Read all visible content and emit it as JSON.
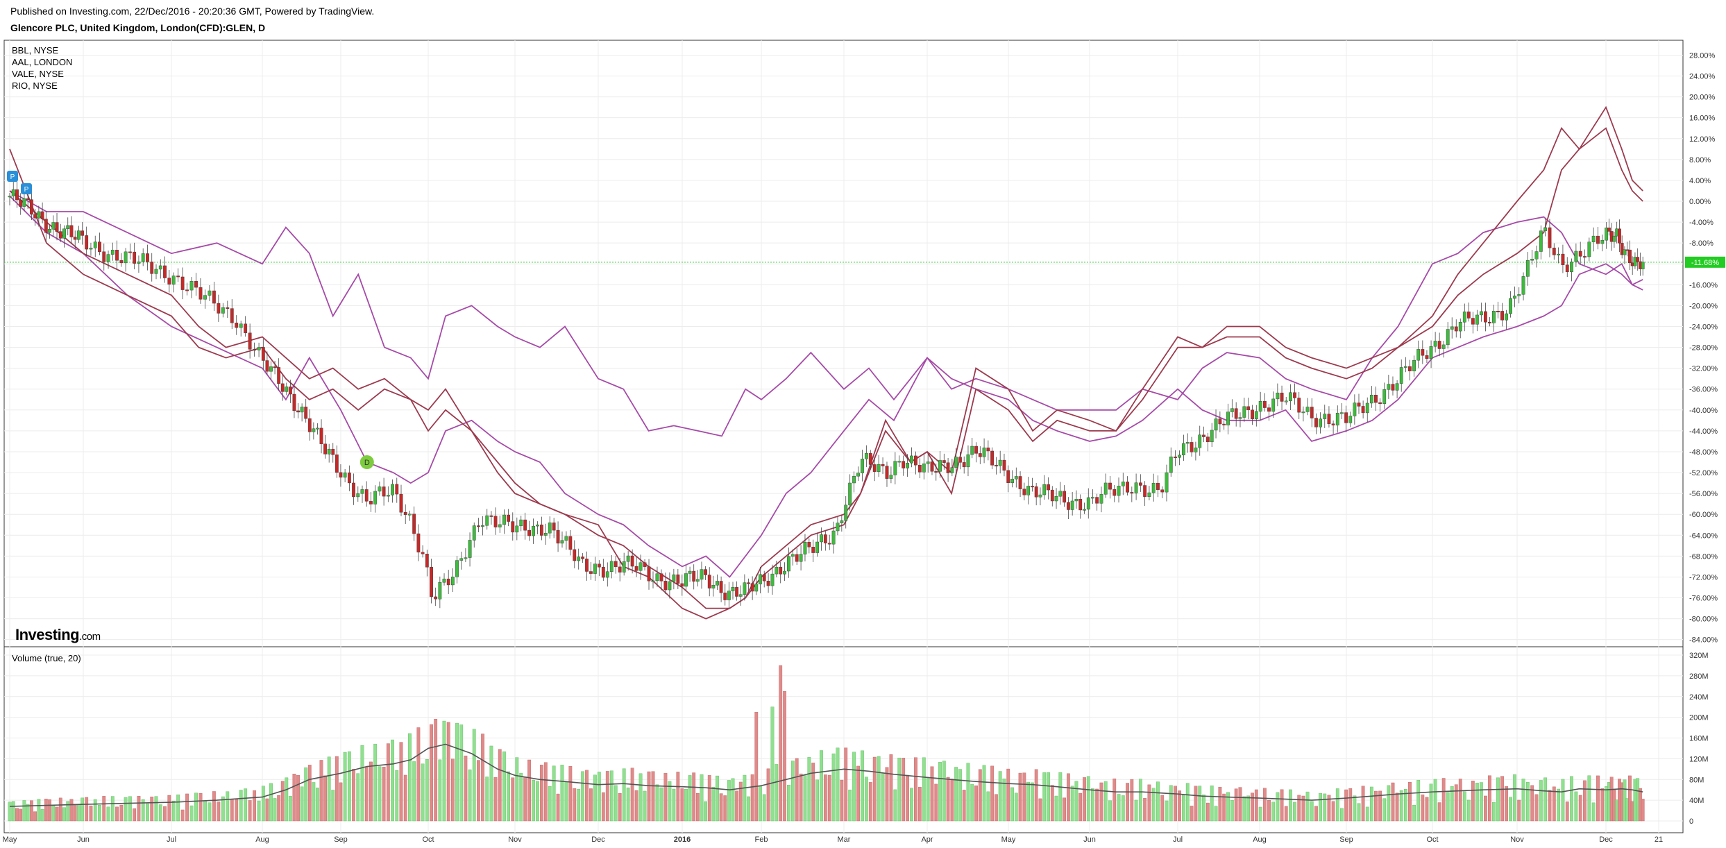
{
  "header": {
    "published": "Published on Investing.com, 22/Dec/2016 - 20:20:36 GMT, Powered by TradingView.",
    "title": "Glencore PLC, United Kingdom, London(CFD):GLEN, D"
  },
  "legend": [
    "BBL, NYSE",
    "AAL, LONDON",
    "VALE, NYSE",
    "RIO, NYSE"
  ],
  "logo": {
    "main": "Investing",
    "suffix": ".com"
  },
  "volume_title": "Volume (true, 20)",
  "price_marker": "-11.68%",
  "marker_letters": {
    "dividend": "D",
    "split": "P"
  },
  "colors": {
    "up": "#3dbb3d",
    "down": "#c62828",
    "vol_up": "#8fe08f",
    "vol_down": "#e08a8a",
    "compare_purple": "#a64aa8",
    "compare_maroon": "#9c3a4e",
    "price_line": "#2ecc2e",
    "marker_green": "#7dcc3e",
    "marker_blue": "#2a8fd8"
  },
  "chart_data": {
    "type": "line",
    "xlabel": "",
    "ylabel": "",
    "x_ticks": [
      "May",
      "Jun",
      "Jul",
      "Aug",
      "Sep",
      "Oct",
      "Nov",
      "Dec",
      "2016",
      "Feb",
      "Mar",
      "Apr",
      "May",
      "Jun",
      "Jul",
      "Aug",
      "Sep",
      "Oct",
      "Nov",
      "Dec",
      "21"
    ],
    "y_ticks": [
      "28.00%",
      "24.00%",
      "20.00%",
      "16.00%",
      "12.00%",
      "8.00%",
      "4.00%",
      "0.00%",
      "-4.00%",
      "-8.00%",
      "-12.00%",
      "-16.00%",
      "-20.00%",
      "-24.00%",
      "-28.00%",
      "-32.00%",
      "-36.00%",
      "-40.00%",
      "-44.00%",
      "-48.00%",
      "-52.00%",
      "-56.00%",
      "-60.00%",
      "-64.00%",
      "-68.00%",
      "-72.00%",
      "-76.00%",
      "-80.00%",
      "-84.00%"
    ],
    "ylim": [
      -86,
      30
    ],
    "volume_ticks": [
      "320M",
      "280M",
      "240M",
      "200M",
      "160M",
      "120M",
      "80M",
      "40M",
      "0"
    ],
    "volume_ylim": [
      0,
      330
    ],
    "grid": true,
    "months_x": [
      0,
      1,
      2,
      3,
      4,
      5,
      6,
      7,
      8,
      9,
      10,
      11,
      12,
      13,
      14,
      15,
      16,
      17,
      18,
      19,
      19.7
    ],
    "main_series": {
      "name": "Glencore PLC, United Kingdom, London(CFD):GLEN, D",
      "x": [
        0,
        0.5,
        1,
        1.5,
        2,
        2.3,
        2.7,
        3,
        3.3,
        3.5,
        3.8,
        4,
        4.3,
        4.6,
        4.8,
        4.95,
        5.05,
        5.3,
        5.6,
        6,
        6.4,
        6.8,
        7,
        7.4,
        7.7,
        8,
        8.3,
        8.6,
        8.8,
        9,
        9.3,
        9.6,
        9.9,
        10,
        10.2,
        10.5,
        10.7,
        11,
        11.3,
        11.6,
        12,
        12.3,
        12.7,
        13,
        13.2,
        13.5,
        13.8,
        14,
        14.3,
        14.6,
        15,
        15.3,
        15.6,
        16,
        16.3,
        16.6,
        17,
        17.3,
        17.6,
        17.9,
        18.1,
        18.3,
        18.5,
        18.7,
        19,
        19.2,
        19.4,
        19.6,
        19.7
      ],
      "y": [
        1,
        -4,
        -8,
        -11,
        -14,
        -18,
        -22,
        -31,
        -36,
        -40,
        -48,
        -52,
        -57,
        -56,
        -61,
        -68,
        -76,
        -72,
        -60,
        -63,
        -62,
        -70,
        -70,
        -70,
        -72,
        -73,
        -72,
        -75,
        -75,
        -73,
        -69,
        -67,
        -63,
        -58,
        -50,
        -52,
        -49,
        -52,
        -50,
        -48,
        -52,
        -56,
        -57,
        -58,
        -56,
        -54,
        -56,
        -48,
        -45,
        -42,
        -39,
        -38,
        -41,
        -42,
        -38,
        -34,
        -28,
        -23,
        -23,
        -20,
        -14,
        -6,
        -12,
        -10,
        -7,
        -6,
        -10,
        -13,
        -12
      ]
    },
    "series": [
      {
        "name": "BBL, NYSE",
        "color": "compare_purple",
        "x": [
          0,
          0.5,
          1,
          1.5,
          2,
          2.5,
          3,
          3.3,
          3.6,
          3.9,
          4.2,
          4.5,
          4.8,
          5,
          5.2,
          5.5,
          5.8,
          6,
          6.3,
          6.6,
          7,
          7.3,
          7.6,
          7.9,
          8.2,
          8.5,
          8.8,
          9,
          9.3,
          9.6,
          10,
          10.3,
          10.6,
          11,
          11.3,
          11.6,
          12,
          12.3,
          12.6,
          13,
          13.3,
          13.6,
          14,
          14.3,
          14.6,
          15,
          15.3,
          15.6,
          16,
          16.3,
          16.6,
          17,
          17.3,
          17.6,
          18,
          18.3,
          18.5,
          18.7,
          19,
          19.3,
          19.5,
          19.7
        ],
        "y": [
          2,
          -2,
          -2,
          -6,
          -10,
          -8,
          -12,
          -5,
          -10,
          -22,
          -14,
          -28,
          -30,
          -34,
          -22,
          -20,
          -24,
          -26,
          -28,
          -24,
          -34,
          -36,
          -44,
          -43,
          -44,
          -45,
          -36,
          -38,
          -34,
          -29,
          -36,
          -32,
          -38,
          -30,
          -36,
          -34,
          -36,
          -38,
          -40,
          -40,
          -40,
          -36,
          -38,
          -32,
          -29,
          -30,
          -34,
          -36,
          -38,
          -30,
          -24,
          -12,
          -10,
          -6,
          -4,
          -3,
          -6,
          -12,
          -14,
          -12,
          -16,
          -17
        ]
      },
      {
        "name": "AAL, LONDON",
        "color": "compare_purple",
        "x": [
          0,
          0.5,
          1,
          1.5,
          2,
          2.5,
          3,
          3.3,
          3.6,
          4,
          4.3,
          4.6,
          4.8,
          5,
          5.2,
          5.5,
          5.8,
          6,
          6.3,
          6.6,
          7,
          7.3,
          7.6,
          8,
          8.3,
          8.6,
          9,
          9.3,
          9.6,
          10,
          10.3,
          10.6,
          11,
          11.3,
          11.6,
          12,
          12.3,
          12.6,
          13,
          13.3,
          13.6,
          14,
          14.3,
          14.6,
          15,
          15.3,
          15.6,
          16,
          16.3,
          16.6,
          17,
          17.3,
          17.6,
          18,
          18.3,
          18.5,
          18.7,
          19,
          19.3,
          19.5,
          19.7
        ],
        "y": [
          1,
          -6,
          -10,
          -18,
          -24,
          -28,
          -32,
          -38,
          -30,
          -40,
          -50,
          -52,
          -54,
          -52,
          -44,
          -42,
          -46,
          -48,
          -50,
          -56,
          -60,
          -62,
          -66,
          -70,
          -68,
          -72,
          -64,
          -56,
          -52,
          -44,
          -38,
          -42,
          -30,
          -34,
          -36,
          -38,
          -42,
          -44,
          -46,
          -45,
          -42,
          -36,
          -40,
          -42,
          -42,
          -40,
          -46,
          -44,
          -42,
          -38,
          -30,
          -28,
          -26,
          -24,
          -22,
          -20,
          -14,
          -12,
          -14,
          -16,
          -15
        ]
      },
      {
        "name": "VALE, NYSE",
        "color": "compare_maroon",
        "x": [
          0,
          0.5,
          1,
          1.5,
          2,
          2.3,
          2.6,
          3,
          3.3,
          3.6,
          3.9,
          4.2,
          4.5,
          4.8,
          5,
          5.2,
          5.5,
          5.8,
          6,
          6.3,
          6.6,
          7,
          7.3,
          7.6,
          8,
          8.3,
          8.6,
          8.8,
          9,
          9.3,
          9.6,
          10,
          10.2,
          10.5,
          10.8,
          11,
          11.3,
          11.6,
          12,
          12.3,
          12.6,
          13,
          13.3,
          13.6,
          14,
          14.3,
          14.6,
          15,
          15.3,
          15.6,
          16,
          16.3,
          16.6,
          17,
          17.3,
          17.6,
          18,
          18.3,
          18.5,
          18.7,
          19,
          19.3,
          19.5,
          19.7
        ],
        "y": [
          10,
          -8,
          -14,
          -18,
          -22,
          -28,
          -30,
          -28,
          -34,
          -38,
          -36,
          -40,
          -36,
          -38,
          -40,
          -36,
          -44,
          -52,
          -56,
          -58,
          -60,
          -62,
          -70,
          -72,
          -78,
          -80,
          -78,
          -76,
          -70,
          -66,
          -62,
          -60,
          -56,
          -42,
          -50,
          -48,
          -56,
          -36,
          -40,
          -46,
          -42,
          -44,
          -44,
          -36,
          -26,
          -28,
          -24,
          -24,
          -28,
          -30,
          -32,
          -30,
          -28,
          -22,
          -14,
          -8,
          0,
          6,
          14,
          10,
          18,
          10,
          4,
          2
        ]
      },
      {
        "name": "RIO, NYSE",
        "color": "compare_maroon",
        "x": [
          0,
          0.5,
          1,
          1.5,
          2,
          2.3,
          2.6,
          3,
          3.3,
          3.6,
          3.9,
          4.2,
          4.5,
          4.8,
          5,
          5.2,
          5.5,
          5.8,
          6,
          6.3,
          6.6,
          7,
          7.3,
          7.6,
          8,
          8.3,
          8.6,
          8.8,
          9,
          9.3,
          9.6,
          10,
          10.2,
          10.5,
          10.8,
          11,
          11.3,
          11.6,
          12,
          12.3,
          12.6,
          13,
          13.3,
          13.6,
          14,
          14.3,
          14.6,
          15,
          15.3,
          15.6,
          16,
          16.3,
          16.6,
          17,
          17.3,
          17.6,
          18,
          18.3,
          18.5,
          18.7,
          19,
          19.3,
          19.5,
          19.7
        ],
        "y": [
          2,
          -4,
          -10,
          -14,
          -18,
          -24,
          -28,
          -26,
          -30,
          -34,
          -32,
          -36,
          -34,
          -38,
          -44,
          -40,
          -44,
          -50,
          -54,
          -58,
          -60,
          -64,
          -66,
          -70,
          -74,
          -78,
          -78,
          -76,
          -72,
          -68,
          -64,
          -62,
          -56,
          -44,
          -50,
          -48,
          -52,
          -32,
          -36,
          -44,
          -40,
          -42,
          -44,
          -38,
          -28,
          -28,
          -26,
          -26,
          -30,
          -32,
          -34,
          -32,
          -28,
          -24,
          -18,
          -14,
          -10,
          -6,
          6,
          10,
          14,
          6,
          2,
          0
        ]
      }
    ],
    "volume": {
      "name": "Volume (true, 20)",
      "ma_x": [
        0,
        0.5,
        1,
        1.5,
        2,
        2.5,
        3,
        3.3,
        3.6,
        4,
        4.3,
        4.6,
        4.8,
        5,
        5.2,
        5.5,
        5.8,
        6,
        6.3,
        6.6,
        7,
        7.3,
        7.6,
        8,
        8.3,
        8.6,
        9,
        9.3,
        9.6,
        10,
        10.3,
        10.6,
        11,
        11.3,
        11.6,
        12,
        12.3,
        12.6,
        13,
        13.3,
        13.6,
        14,
        14.3,
        14.6,
        15,
        15.3,
        15.6,
        16,
        16.3,
        16.6,
        17,
        17.3,
        17.6,
        18,
        18.3,
        18.5,
        18.7,
        19,
        19.3,
        19.5,
        19.7
      ],
      "ma": [
        28,
        30,
        32,
        34,
        36,
        40,
        46,
        60,
        80,
        92,
        105,
        110,
        118,
        140,
        148,
        130,
        100,
        88,
        80,
        76,
        70,
        72,
        68,
        66,
        64,
        60,
        68,
        80,
        92,
        100,
        96,
        90,
        84,
        80,
        76,
        72,
        70,
        66,
        60,
        56,
        56,
        52,
        48,
        46,
        44,
        42,
        40,
        44,
        48,
        52,
        56,
        58,
        60,
        62,
        58,
        56,
        62,
        60,
        62,
        60,
        56
      ]
    }
  }
}
